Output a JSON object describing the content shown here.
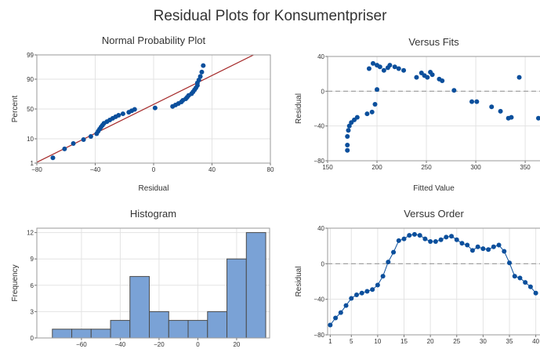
{
  "title": "Residual Plots for Konsumentpriser",
  "colors": {
    "point": "#0b4f9c",
    "fit_line": "#a52a2a",
    "bar_fill": "#7aa2d6",
    "bar_edge": "#4a4a4a",
    "grid": "#e3e3e3",
    "zero_line": "#9a9a9a",
    "frame": "#9a9a9a"
  },
  "chart_data": [
    {
      "type": "scatter",
      "title": "Normal Probability Plot",
      "xlabel": "Residual",
      "ylabel": "Percent",
      "xlim": [
        -80,
        80
      ],
      "xticks": [
        -80,
        -40,
        0,
        40,
        80
      ],
      "yticks": [
        1,
        10,
        50,
        90,
        99
      ],
      "yscale": "normal-probability",
      "grid": true,
      "fit_line": {
        "x": [
          -80,
          80
        ]
      },
      "x": [
        -69,
        -61,
        -55,
        -48,
        -43,
        -39,
        -38,
        -37,
        -36,
        -35,
        -34,
        -32,
        -30,
        -28,
        -26,
        -24,
        -21,
        -17,
        -15,
        -13,
        1,
        13,
        15,
        17,
        19,
        20,
        22,
        23,
        24,
        26,
        27,
        28,
        29,
        30,
        30,
        31,
        32,
        33,
        34
      ],
      "y": [
        1.8,
        4.3,
        6.9,
        9.4,
        11.9,
        14.4,
        16.9,
        19.4,
        21.9,
        24.4,
        26.9,
        29.4,
        31.9,
        34.4,
        36.9,
        39.4,
        41.9,
        44.4,
        46.9,
        49.4,
        51.9,
        54.4,
        56.9,
        59.4,
        61.9,
        64.4,
        66.9,
        69.4,
        71.9,
        74.4,
        76.9,
        79.4,
        81.9,
        84.4,
        86.9,
        89.4,
        91.9,
        94.4,
        96.9
      ]
    },
    {
      "type": "scatter",
      "title": "Versus Fits",
      "xlabel": "Fitted Value",
      "ylabel": "Residual",
      "xlim": [
        150,
        365
      ],
      "ylim": [
        -80,
        40
      ],
      "xticks": [
        150,
        200,
        250,
        300,
        350
      ],
      "yticks": [
        -80,
        -40,
        0,
        40
      ],
      "reference_line": 0,
      "grid": true,
      "x": [
        170,
        170,
        170,
        171,
        172,
        174,
        177,
        180,
        190,
        195,
        198,
        200,
        192,
        196,
        200,
        203,
        207,
        211,
        213,
        218,
        222,
        227,
        240,
        245,
        248,
        251,
        254,
        256,
        263,
        266,
        278,
        296,
        301,
        316,
        325,
        333,
        336,
        344,
        366
      ],
      "y": [
        -68,
        -62,
        -52,
        -45,
        -40,
        -36,
        -33,
        -30,
        -26,
        -24,
        -15,
        2,
        26,
        32,
        30,
        28,
        24,
        27,
        30,
        28,
        26,
        24,
        16,
        21,
        18,
        16,
        22,
        19,
        14,
        12,
        1,
        -12,
        -12,
        -18,
        -23,
        -31,
        -30,
        16,
        -31
      ]
    },
    {
      "type": "bar",
      "title": "Histogram",
      "xlabel": "",
      "ylabel": "Frequency",
      "bin_edges": [
        -75,
        -65,
        -55,
        -45,
        -35,
        -25,
        -15,
        -5,
        5,
        15,
        25,
        35
      ],
      "values": [
        1,
        1,
        1,
        2,
        7,
        3,
        2,
        2,
        3,
        9,
        12
      ],
      "xticks": [
        -60,
        -40,
        -20,
        0,
        20
      ],
      "yticks": [
        0,
        3,
        6,
        9,
        12
      ],
      "ylim": [
        0,
        12.5
      ],
      "grid": true
    },
    {
      "type": "line",
      "title": "Versus Order",
      "xlabel": "",
      "ylabel": "Residual",
      "xlim": [
        1,
        40
      ],
      "ylim": [
        -80,
        40
      ],
      "xticks": [
        1,
        5,
        10,
        15,
        20,
        25,
        30,
        35,
        40
      ],
      "yticks": [
        -80,
        -40,
        0,
        40
      ],
      "reference_line": 0,
      "grid": true,
      "markers": true,
      "x": [
        1,
        2,
        3,
        4,
        5,
        6,
        7,
        8,
        9,
        10,
        11,
        12,
        13,
        14,
        15,
        16,
        17,
        18,
        19,
        20,
        21,
        22,
        23,
        24,
        25,
        26,
        27,
        28,
        29,
        30,
        31,
        32,
        33,
        34,
        35,
        36,
        37,
        38,
        39,
        40
      ],
      "y": [
        -69,
        -61,
        -55,
        -47,
        -39,
        -35,
        -33,
        -31,
        -29,
        -24,
        -14,
        2,
        13,
        26,
        28,
        32,
        33,
        32,
        28,
        25,
        25,
        27,
        30,
        31,
        27,
        23,
        21,
        15,
        19,
        17,
        16,
        19,
        21,
        14,
        1,
        -14,
        -16,
        -21,
        -26,
        -33
      ]
    }
  ]
}
